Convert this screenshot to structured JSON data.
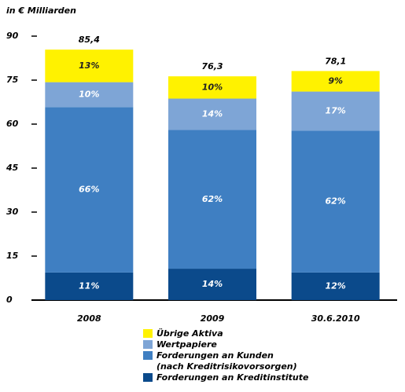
{
  "chart_data": {
    "type": "stacked_bar",
    "title": "in € Milliarden",
    "categories": [
      "2008",
      "2009",
      "30.6.2010"
    ],
    "series": [
      {
        "name": "Forderungen an Kreditinstitute",
        "color": "#0b4a8b",
        "values": [
          9.4,
          10.7,
          9.4
        ],
        "value_labels": [
          "11%",
          "14%",
          "12%"
        ]
      },
      {
        "name": "Forderungen an Kunden\n(nach Kreditrisikovorsorgen)",
        "color": "#3f7fc2",
        "values": [
          56.4,
          47.3,
          48.4
        ],
        "value_labels": [
          "66%",
          "62%",
          "62%"
        ]
      },
      {
        "name": "Wertpapiere",
        "color": "#7ea5d6",
        "values": [
          8.5,
          10.7,
          13.3
        ],
        "value_labels": [
          "10%",
          "14%",
          "17%"
        ]
      },
      {
        "name": "Übrige Aktiva",
        "color": "#fff200",
        "values": [
          11.1,
          7.6,
          7.0
        ],
        "value_labels": [
          "13%",
          "10%",
          "9%"
        ]
      }
    ],
    "totals": [
      85.4,
      76.3,
      78.1
    ],
    "total_labels": [
      "85,4",
      "76,3",
      "78,1"
    ],
    "ylim": [
      0,
      90
    ],
    "yticks": [
      0,
      15,
      30,
      45,
      60,
      75,
      90
    ]
  }
}
